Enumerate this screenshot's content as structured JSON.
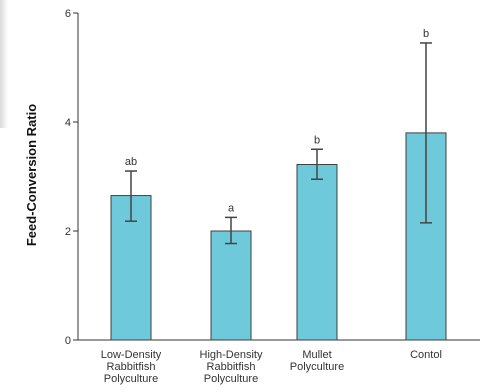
{
  "chart_data": {
    "type": "bar",
    "title": "",
    "xlabel": "",
    "ylabel": "Feed-Conversion Ratio",
    "ylim": [
      0,
      6
    ],
    "yticks": [
      "0",
      "2",
      "4",
      "6"
    ],
    "categories": [
      [
        "Low-Density",
        "Rabbitfish",
        "Polyculture"
      ],
      [
        "High-Density",
        "Rabbitfish",
        "Polyculture"
      ],
      [
        "Mullet",
        "Polyculture"
      ],
      [
        "Contol"
      ]
    ],
    "values": [
      2.65,
      2.0,
      3.22,
      3.8
    ],
    "error_low": [
      2.18,
      1.77,
      2.95,
      2.15
    ],
    "error_high": [
      3.1,
      2.25,
      3.5,
      5.45
    ],
    "significance": [
      "ab",
      "a",
      "b",
      "b"
    ],
    "grid": false,
    "colors": {
      "bar": "#6ecadb",
      "bar_edge": "#3f3f3f",
      "axis": "#333333",
      "error": "#444444"
    }
  }
}
